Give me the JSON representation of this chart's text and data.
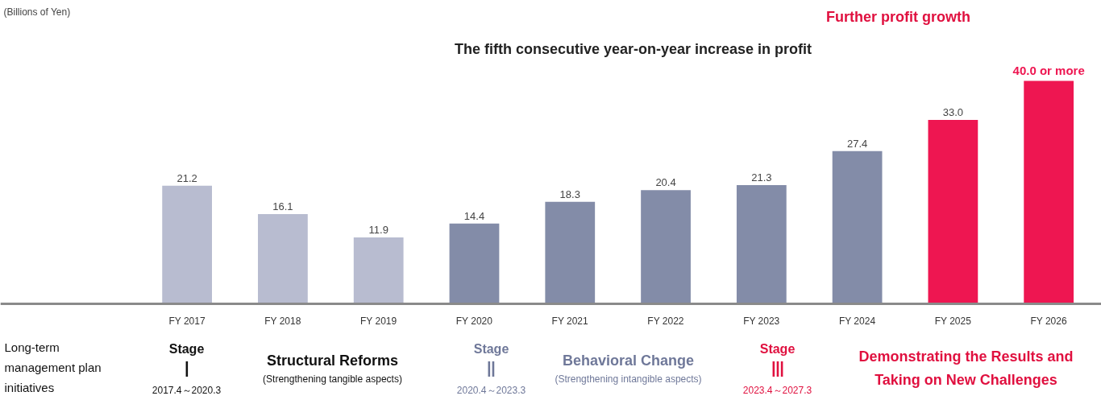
{
  "chart_data": {
    "type": "bar",
    "categories": [
      "FY 2017",
      "FY 2018",
      "FY 2019",
      "FY 2020",
      "FY 2021",
      "FY 2022",
      "FY 2023",
      "FY 2024",
      "FY 2025",
      "FY 2026"
    ],
    "values": [
      21.2,
      16.1,
      11.9,
      14.4,
      18.3,
      20.4,
      21.3,
      27.4,
      33.0,
      40.0
    ],
    "colors": [
      "#b8bcd0",
      "#b8bcd0",
      "#b8bcd0",
      "#838ca8",
      "#838ca8",
      "#838ca8",
      "#838ca8",
      "#838ca8",
      "#ee1651",
      "#ee1651"
    ],
    "value_labels": [
      "21.2",
      "16.1",
      "11.9",
      "14.4",
      "18.3",
      "20.4",
      "21.3",
      "27.4",
      "33.0",
      "40.0 or more"
    ],
    "annotations": [
      "(Billions of Yen)",
      "The fifth consecutive year-on-year increase in profit",
      "Further profit growth",
      "Long-term\nmanagement plan\ninitiatives",
      "Stage",
      "Ⅰ",
      "2017.4～2020.3",
      "Structural Reforms",
      "(Strengthening tangible aspects)",
      "Stage",
      "Ⅱ",
      "2020.4～2023.3",
      "Behavioral Change",
      "(Strengthening intangible aspects)",
      "Stage",
      "Ⅲ",
      "2023.4～2027.3",
      "Demonstrating the Results and\nTaking on New Challenges"
    ]
  }
}
